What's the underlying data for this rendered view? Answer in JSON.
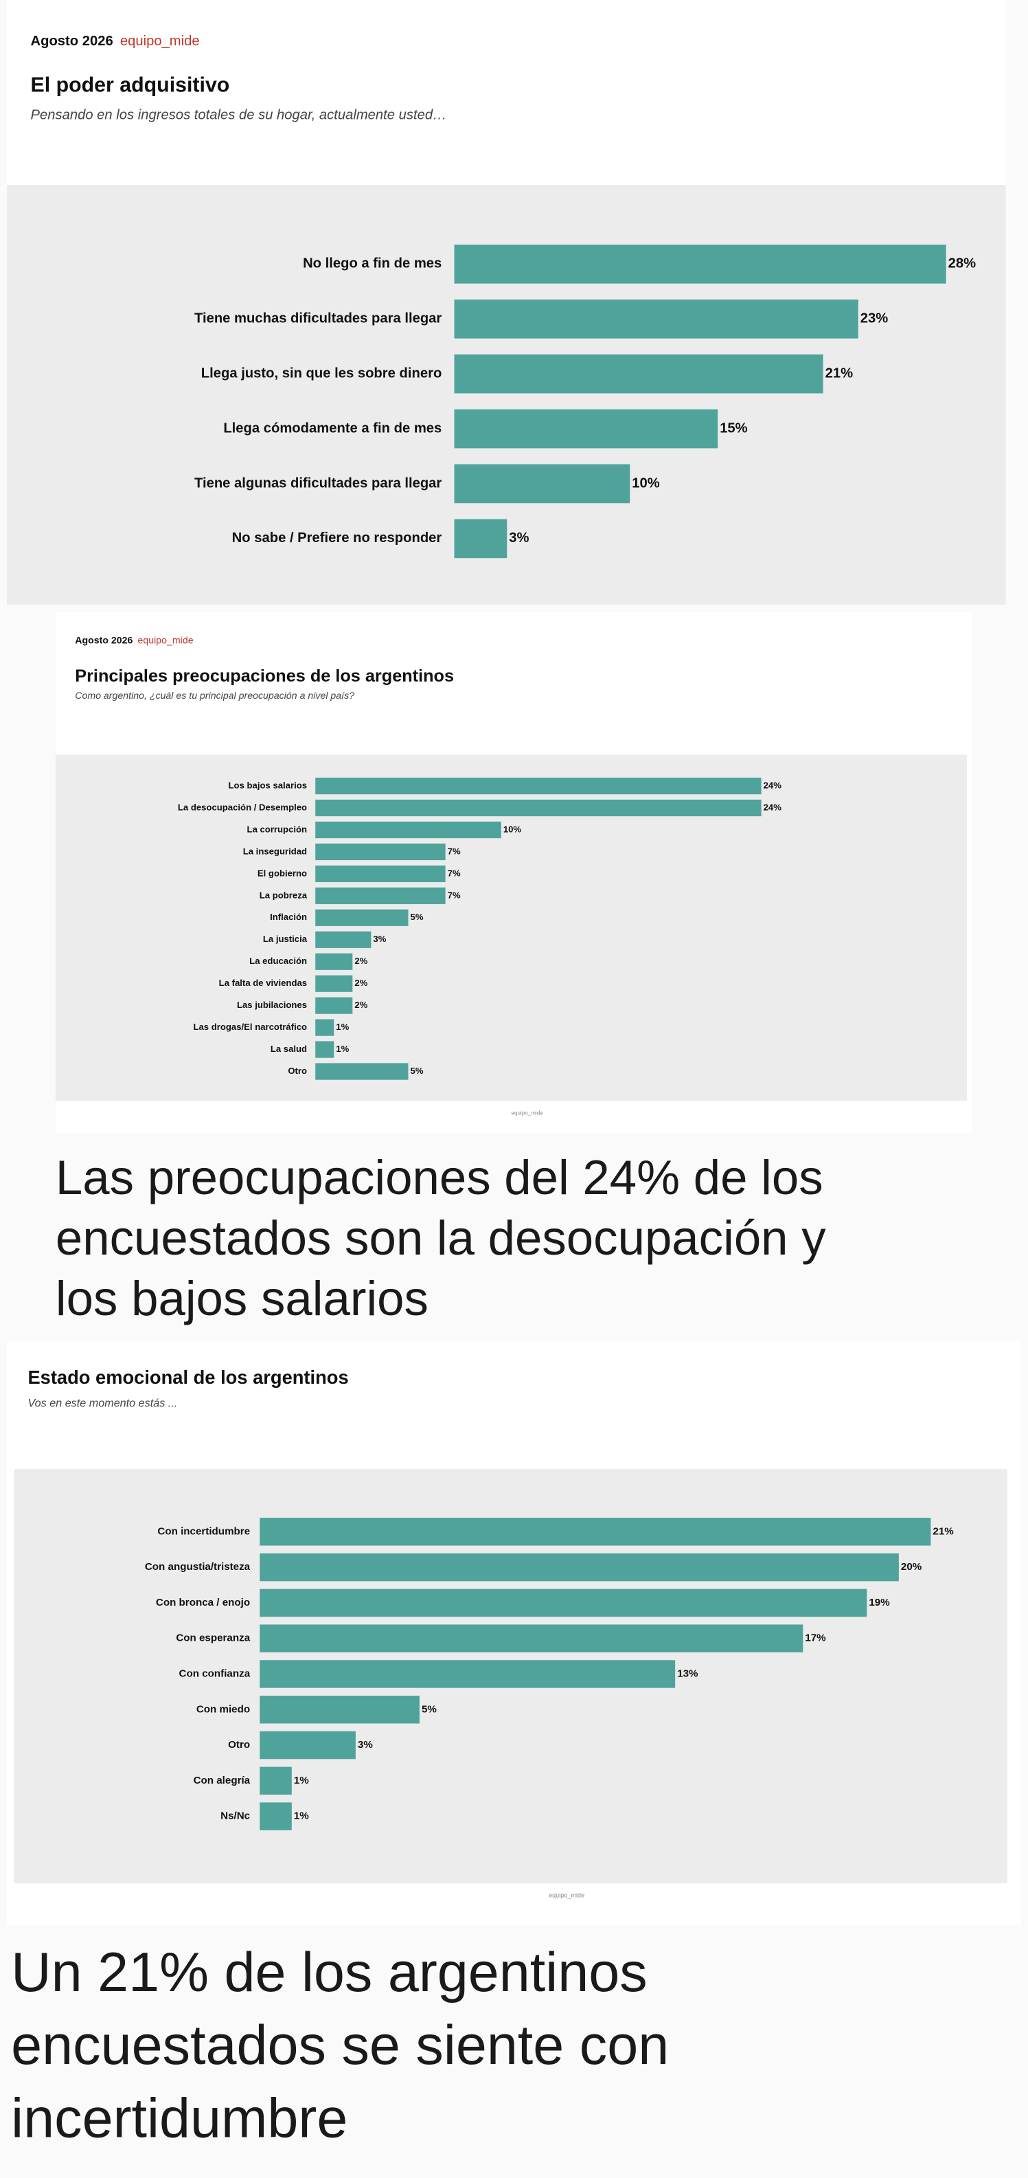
{
  "chart_data": [
    {
      "type": "bar",
      "orientation": "horizontal",
      "date": "Agosto 2026",
      "source": "equipo_mide",
      "title": "El poder adquisitivo",
      "subtitle": "Pensando en los ingresos totales de su hogar, actualmente usted…",
      "categories": [
        "No llego a fin de mes",
        "Tiene muchas dificultades para llegar",
        "Llega justo, sin que les sobre dinero",
        "Llega cómodamente a fin de mes",
        "Tiene algunas dificultades para llegar",
        "No sabe / Prefiere no responder"
      ],
      "values": [
        28,
        23,
        21,
        15,
        10,
        3
      ],
      "value_labels": [
        "28%",
        "23%",
        "21%",
        "15%",
        "10%",
        "3%"
      ],
      "color": "#4fa39a"
    },
    {
      "type": "bar",
      "orientation": "horizontal",
      "date": "Agosto 2026",
      "source": "equipo_mide",
      "title": "Principales preocupaciones de los argentinos",
      "subtitle": "Como argentino, ¿cuál es tu principal preocupación a nivel país?",
      "categories": [
        "Los bajos salarios",
        "La desocupación / Desempleo",
        "La corrupción",
        "La inseguridad",
        "El gobierno",
        "La pobreza",
        "Inflación",
        "La justicia",
        "La educación",
        "La falta de viviendas",
        "Las jubilaciones",
        "Las drogas/El narcotráfico",
        "La salud",
        "Otro"
      ],
      "values": [
        24,
        24,
        10,
        7,
        7,
        7,
        5,
        3,
        2,
        2,
        2,
        1,
        1,
        5
      ],
      "value_labels": [
        "24%",
        "24%",
        "10%",
        "7%",
        "7%",
        "7%",
        "5%",
        "3%",
        "2%",
        "2%",
        "2%",
        "1%",
        "1%",
        "5%"
      ],
      "color": "#4fa39a",
      "watermark": "equipo_mide"
    },
    {
      "type": "bar",
      "orientation": "horizontal",
      "title": "Estado emocional de los argentinos",
      "subtitle": "Vos en este momento estás ...",
      "categories": [
        "Con incertidumbre",
        "Con angustia/tristeza",
        "Con bronca / enojo",
        "Con esperanza",
        "Con confianza",
        "Con miedo",
        "Otro",
        "Con alegría",
        "Ns/Nc"
      ],
      "values": [
        21,
        20,
        19,
        17,
        13,
        5,
        3,
        1,
        1
      ],
      "value_labels": [
        "21%",
        "20%",
        "19%",
        "17%",
        "13%",
        "5%",
        "3%",
        "1%",
        "1%"
      ],
      "color": "#4fa39a",
      "watermark": "equipo_mide"
    }
  ],
  "captions": [
    {
      "lines": [
        "Las preocupaciones del 24% de los",
        "encuestados son la desocupación y",
        "los bajos salarios"
      ]
    },
    {
      "lines": [
        "Un 21% de los argentinos",
        "encuestados se siente con",
        "incertidumbre"
      ]
    }
  ]
}
